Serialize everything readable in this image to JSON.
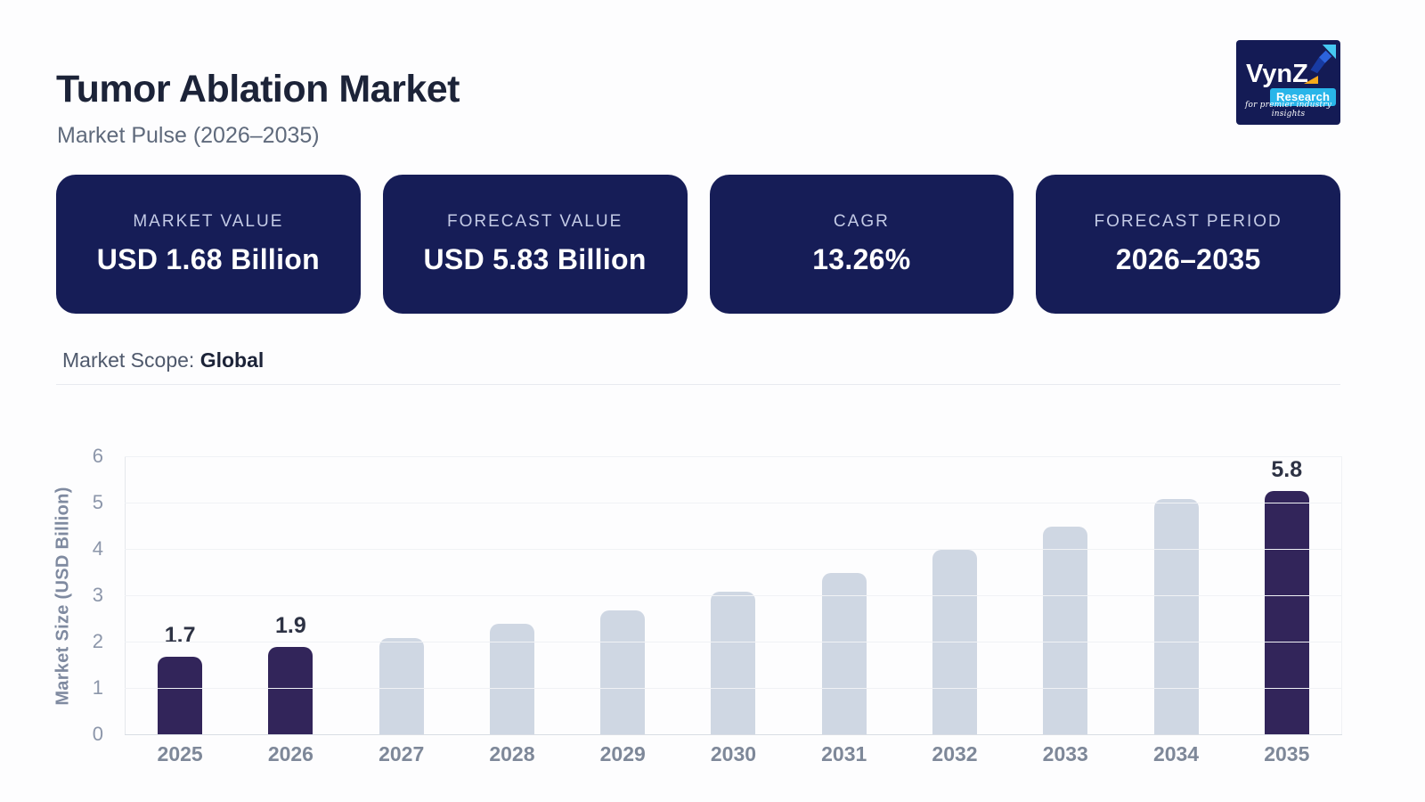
{
  "header": {
    "title": "Tumor Ablation Market",
    "subtitle": "Market Pulse (2026–2035)",
    "logo": {
      "brand": "VynZ",
      "sub_brand": "Research",
      "tagline": "for premier industry insights"
    }
  },
  "stats": [
    {
      "label": "MARKET VALUE",
      "value": "USD 1.68 Billion"
    },
    {
      "label": "FORECAST VALUE",
      "value": "USD 5.83 Billion"
    },
    {
      "label": "CAGR",
      "value": "13.26%"
    },
    {
      "label": "FORECAST PERIOD",
      "value": "2026–2035"
    }
  ],
  "scope": {
    "label": "Market Scope:",
    "value": "Global"
  },
  "chart_data": {
    "type": "bar",
    "categories": [
      "2025",
      "2026",
      "2027",
      "2028",
      "2029",
      "2030",
      "2031",
      "2032",
      "2033",
      "2034",
      "2035"
    ],
    "values": [
      1.7,
      1.9,
      2.1,
      2.4,
      2.7,
      3.1,
      3.5,
      4.0,
      4.5,
      5.1,
      5.8
    ],
    "point_labels": [
      "1.7",
      "1.9",
      "",
      "",
      "",
      "",
      "",
      "",
      "",
      "",
      "5.8"
    ],
    "highlight_indexes": [
      0,
      1,
      10
    ],
    "colors": {
      "highlight": "#32255a",
      "default": "#cfd7e3"
    },
    "title": "",
    "xlabel": "",
    "ylabel": "Market Size (USD Billion)",
    "ylim": [
      0,
      6
    ],
    "yticks": [
      0,
      1,
      2,
      3,
      4,
      5,
      6
    ],
    "grid": true,
    "legend": false
  }
}
